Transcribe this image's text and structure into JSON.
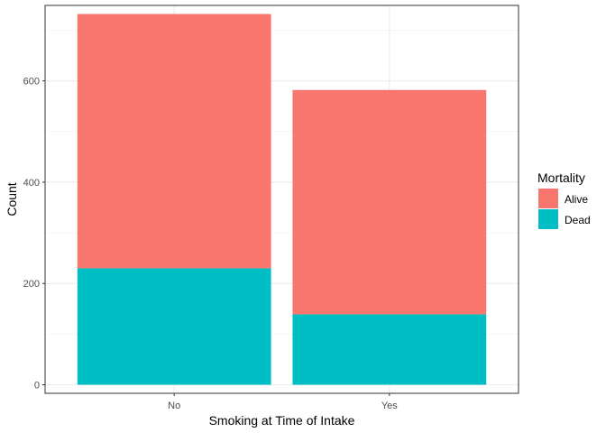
{
  "chart_data": {
    "type": "bar",
    "stacked": true,
    "categories": [
      "No",
      "Yes"
    ],
    "series": [
      {
        "name": "Alive",
        "values": [
          502,
          443
        ],
        "color": "#F8766D"
      },
      {
        "name": "Dead",
        "values": [
          230,
          139
        ],
        "color": "#00BFC4"
      }
    ],
    "xlabel": "Smoking at Time of Intake",
    "ylabel": "Count",
    "ylim": [
      -16.9,
      749
    ],
    "yticks": [
      0,
      200,
      400,
      600
    ],
    "grid": true,
    "legend": {
      "title": "Mortality",
      "position": "right"
    }
  }
}
